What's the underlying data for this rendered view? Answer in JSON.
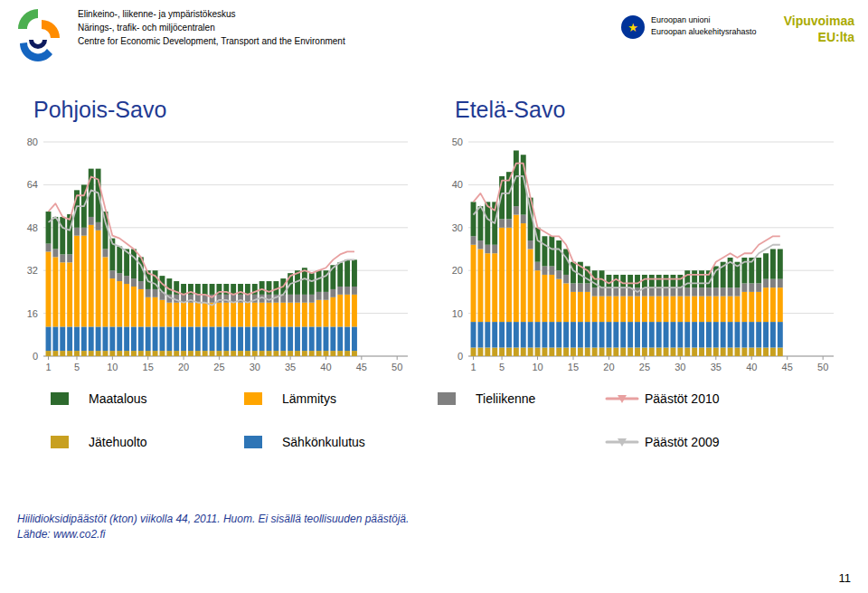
{
  "chart_data": [
    {
      "type": "bar",
      "title": "Pohjois-Savo",
      "stacked": true,
      "grid": true,
      "legend": "bottom",
      "x": [
        1,
        2,
        3,
        4,
        5,
        6,
        7,
        8,
        9,
        10,
        11,
        12,
        13,
        14,
        15,
        16,
        17,
        18,
        19,
        20,
        21,
        22,
        23,
        24,
        25,
        26,
        27,
        28,
        29,
        30,
        31,
        32,
        33,
        34,
        35,
        36,
        37,
        38,
        39,
        40,
        41,
        42,
        43,
        44
      ],
      "xlim": [
        0.3,
        51.5
      ],
      "xticks": [
        1,
        5,
        10,
        15,
        20,
        25,
        30,
        35,
        40,
        45,
        50
      ],
      "ylim": [
        0,
        80
      ],
      "yticks": [
        0,
        16,
        32,
        48,
        64,
        80
      ],
      "series": [
        {
          "name": "Jätehuolto",
          "color": "#C8A020",
          "values": [
            2,
            2,
            2,
            2,
            2,
            2,
            2,
            2,
            2,
            2,
            2,
            2,
            2,
            2,
            2,
            2,
            2,
            2,
            2,
            2,
            2,
            2,
            2,
            2,
            2,
            2,
            2,
            2,
            2,
            2,
            2,
            2,
            2,
            2,
            2,
            2,
            2,
            2,
            2,
            2,
            2,
            2,
            2,
            2
          ]
        },
        {
          "name": "Sähkönkulutus",
          "color": "#2E75B6",
          "values": [
            9,
            9,
            9,
            9,
            9,
            9,
            9,
            9,
            9,
            9,
            9,
            9,
            9,
            9,
            9,
            9,
            9,
            9,
            9,
            9,
            9,
            9,
            9,
            9,
            9,
            9,
            9,
            9,
            9,
            9,
            9,
            9,
            9,
            9,
            9,
            9,
            9,
            9,
            9,
            9,
            9,
            9,
            9,
            9
          ]
        },
        {
          "name": "Lämmitys",
          "color": "#FFA500",
          "values": [
            28,
            26,
            24,
            24,
            34,
            34,
            38,
            36,
            26,
            18,
            17,
            16,
            15,
            14,
            11,
            11,
            10,
            9,
            9,
            9,
            9,
            9,
            9,
            9,
            9,
            9,
            9,
            9,
            9,
            9,
            9,
            9,
            9,
            9,
            9,
            9,
            9,
            9,
            10,
            10,
            11,
            12,
            12,
            12
          ]
        },
        {
          "name": "Tieliikenne",
          "color": "#808080",
          "values": [
            3,
            3,
            3,
            3,
            3,
            3,
            3,
            3,
            3,
            3,
            3,
            3,
            3,
            3,
            3,
            3,
            3,
            3,
            3,
            3,
            3,
            3,
            3,
            3,
            3,
            3,
            3,
            3,
            3,
            3,
            3,
            3,
            3,
            3,
            3,
            3,
            3,
            3,
            3,
            3,
            3,
            3,
            3,
            3
          ]
        },
        {
          "name": "Maatalous",
          "color": "#2D6A2D",
          "values": [
            12,
            12,
            14,
            15,
            14,
            16,
            18,
            20,
            14,
            12,
            10,
            10,
            11,
            9,
            7,
            7,
            6,
            6,
            5,
            4,
            4,
            4,
            4,
            4,
            4,
            4,
            4,
            4,
            4,
            4,
            5,
            5,
            5,
            6,
            8,
            9,
            10,
            8,
            8,
            8,
            9,
            9,
            10,
            10
          ]
        },
        {
          "name": "Päästöt 2010",
          "type": "line",
          "color": "#E8A0A0",
          "values": [
            54,
            57,
            52,
            51,
            60,
            60,
            67,
            66,
            55,
            45,
            44,
            42,
            40,
            37,
            31,
            30,
            27,
            25,
            24,
            23,
            24,
            23,
            23,
            22,
            24,
            24,
            23,
            24,
            23,
            24,
            25,
            24,
            25,
            26,
            30,
            31,
            32,
            31,
            32,
            33,
            36,
            38,
            39,
            39
          ]
        },
        {
          "name": "Päästöt 2009",
          "type": "line",
          "color": "#C0C0C0",
          "values": [
            50,
            52,
            48,
            47,
            56,
            56,
            62,
            61,
            50,
            42,
            41,
            39,
            37,
            34,
            28,
            27,
            24,
            22,
            21,
            20,
            21,
            20,
            20,
            19,
            21,
            21,
            20,
            21,
            20,
            21,
            22,
            21,
            22,
            23,
            27,
            28,
            29,
            28,
            29,
            30,
            33,
            35,
            36,
            36
          ]
        }
      ],
      "annotations": [
        "Elinkeino-, liikenne- ja ympäristökeskus",
        "Närings-, trafik- och miljöcentralen",
        "Centre for Economic Development, Transport and the Environment",
        "★",
        "Euroopan unioni",
        "Euroopan aluekehitysrahasto",
        "Vipuvoimaa",
        "EU:lta",
        "Hiilidioksidipäästöt  (kton) viikolla 44, 2011. Huom. Ei sisällä teollisuuden päästöjä.",
        "Lähde: www.co2.fi",
        "11"
      ]
    },
    {
      "type": "bar",
      "title": "Etelä-Savo",
      "stacked": true,
      "grid": true,
      "x": [
        1,
        2,
        3,
        4,
        5,
        6,
        7,
        8,
        9,
        10,
        11,
        12,
        13,
        14,
        15,
        16,
        17,
        18,
        19,
        20,
        21,
        22,
        23,
        24,
        25,
        26,
        27,
        28,
        29,
        30,
        31,
        32,
        33,
        34,
        35,
        36,
        37,
        38,
        39,
        40,
        41,
        42,
        43,
        44
      ],
      "xlim": [
        0.3,
        51.5
      ],
      "xticks": [
        1,
        5,
        10,
        15,
        20,
        25,
        30,
        35,
        40,
        45,
        50
      ],
      "ylim": [
        0,
        50
      ],
      "yticks": [
        0,
        10,
        20,
        30,
        40,
        50
      ],
      "series": [
        {
          "color": "#C8A020",
          "values": [
            2,
            2,
            2,
            2,
            2,
            2,
            2,
            2,
            2,
            2,
            2,
            2,
            2,
            2,
            2,
            2,
            2,
            2,
            2,
            2,
            2,
            2,
            2,
            2,
            2,
            2,
            2,
            2,
            2,
            2,
            2,
            2,
            2,
            2,
            2,
            2,
            2,
            2,
            2,
            2,
            2,
            2,
            2,
            2
          ]
        },
        {
          "color": "#2E75B6",
          "values": [
            6,
            6,
            6,
            6,
            6,
            6,
            6,
            6,
            6,
            6,
            6,
            6,
            6,
            6,
            6,
            6,
            6,
            6,
            6,
            6,
            6,
            6,
            6,
            6,
            6,
            6,
            6,
            6,
            6,
            6,
            6,
            6,
            6,
            6,
            6,
            6,
            6,
            6,
            6,
            6,
            6,
            6,
            6,
            6
          ]
        },
        {
          "color": "#FFA500",
          "values": [
            18,
            17,
            16,
            16,
            22,
            22,
            25,
            23,
            17,
            12,
            11,
            11,
            10,
            9,
            7,
            7,
            7,
            6,
            6,
            6,
            6,
            6,
            6,
            6,
            6,
            6,
            6,
            6,
            6,
            6,
            6,
            6,
            6,
            6,
            6,
            6,
            6,
            6,
            7,
            7,
            7,
            8,
            8,
            8
          ]
        },
        {
          "color": "#808080",
          "values": [
            2,
            2,
            2,
            2,
            2,
            2,
            2,
            2,
            2,
            2,
            2,
            2,
            2,
            2,
            2,
            2,
            2,
            2,
            2,
            2,
            2,
            2,
            2,
            2,
            2,
            2,
            2,
            2,
            2,
            2,
            2,
            2,
            2,
            2,
            2,
            2,
            2,
            2,
            2,
            2,
            2,
            2,
            2,
            2
          ]
        },
        {
          "color": "#2D6A2D",
          "values": [
            8,
            8,
            10,
            10,
            10,
            11,
            13,
            14,
            10,
            8,
            7,
            7,
            7,
            6,
            5,
            5,
            4,
            4,
            4,
            3,
            3,
            3,
            3,
            3,
            3,
            3,
            3,
            3,
            3,
            3,
            4,
            4,
            4,
            4,
            5,
            6,
            7,
            6,
            6,
            6,
            6,
            6,
            7,
            7
          ]
        },
        {
          "type": "line",
          "color": "#E8A0A0",
          "values": [
            36,
            38,
            35,
            34,
            41,
            41,
            45,
            45,
            37,
            30,
            29,
            28,
            28,
            26,
            22,
            21,
            20,
            18,
            18,
            17,
            18,
            17,
            17,
            17,
            18,
            18,
            18,
            18,
            18,
            18,
            19,
            19,
            19,
            19,
            22,
            23,
            24,
            23,
            24,
            24,
            26,
            27,
            28,
            28
          ]
        },
        {
          "type": "line",
          "color": "#C0C0C0",
          "values": [
            33,
            35,
            32,
            31,
            38,
            38,
            42,
            42,
            34,
            27,
            26,
            25,
            25,
            23,
            20,
            19,
            18,
            17,
            16,
            16,
            16,
            16,
            16,
            15,
            16,
            16,
            16,
            16,
            16,
            16,
            17,
            17,
            17,
            17,
            20,
            21,
            22,
            21,
            22,
            22,
            24,
            25,
            26,
            26
          ]
        }
      ]
    }
  ]
}
